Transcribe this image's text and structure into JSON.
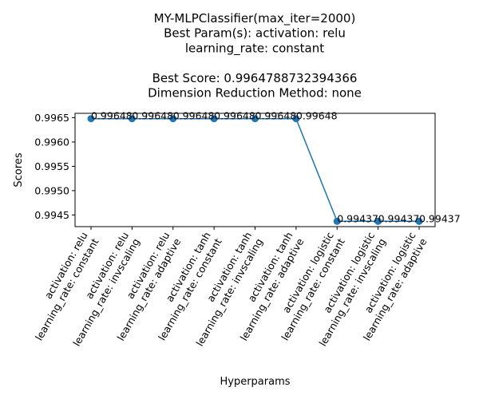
{
  "chart_data": {
    "type": "line",
    "title_lines": [
      "MY-MLPClassifier(max_iter=2000)",
      "Best Param(s): activation: relu",
      "learning_rate: constant",
      "",
      "Best Score: 0.9964788732394366",
      "Dimension Reduction Method: none"
    ],
    "xlabel": "Hyperparams",
    "ylabel": "Scores",
    "categories": [
      [
        "activation: relu",
        "learning_rate: constant"
      ],
      [
        "activation: relu",
        "learning_rate: invscaling"
      ],
      [
        "activation: relu",
        "learning_rate: adaptive"
      ],
      [
        "activation: tanh",
        "learning_rate: constant"
      ],
      [
        "activation: tanh",
        "learning_rate: invscaling"
      ],
      [
        "activation: tanh",
        "learning_rate: adaptive"
      ],
      [
        "activation: logistic",
        "learning_rate: constant"
      ],
      [
        "activation: logistic",
        "learning_rate: invscaling"
      ],
      [
        "activation: logistic",
        "learning_rate: adaptive"
      ]
    ],
    "values": [
      0.99648,
      0.99648,
      0.99648,
      0.99648,
      0.99648,
      0.99648,
      0.99437,
      0.99437,
      0.99437
    ],
    "data_labels": [
      "0.99648",
      "0.99648",
      "0.99648",
      "0.99648",
      "0.99648",
      "0.99648",
      "0.99437",
      "0.99437",
      "0.99437"
    ],
    "y_ticks": [
      0.9945,
      0.995,
      0.9955,
      0.996,
      0.9965
    ],
    "y_tick_labels": [
      "0.9945",
      "0.9950",
      "0.9955",
      "0.9960",
      "0.9965"
    ],
    "ylim": [
      0.99426,
      0.99659
    ],
    "grid": false,
    "line_color": "#1f77b4",
    "marker_color": "#1f77b4"
  }
}
